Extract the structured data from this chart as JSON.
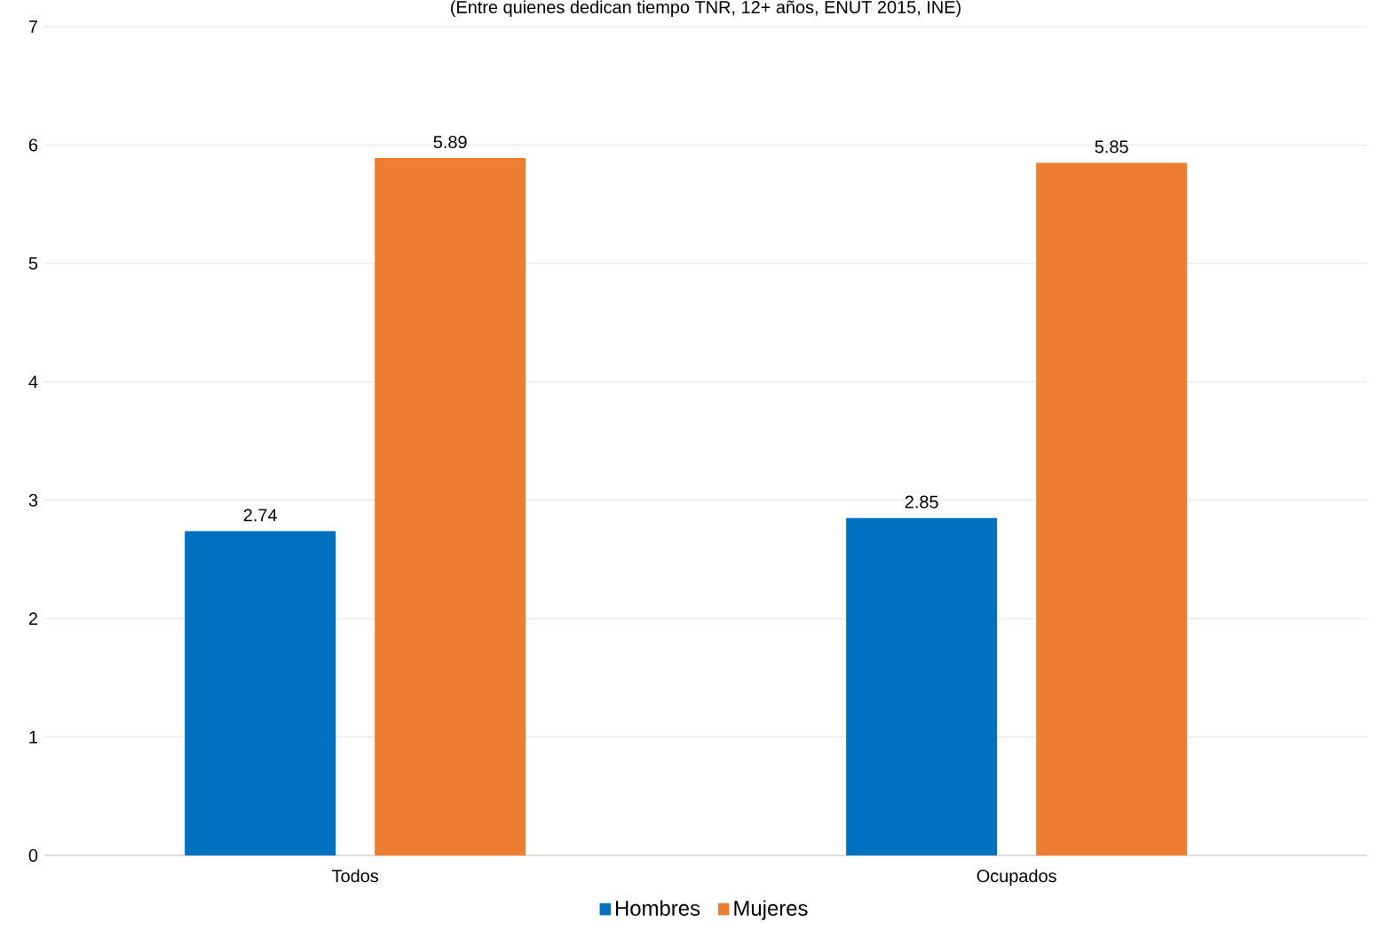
{
  "chart_data": {
    "type": "bar",
    "title": "(Entre quienes dedican tiempo TNR, 12+ años, ENUT 2015, INE)",
    "categories": [
      "Todos",
      "Ocupados"
    ],
    "series": [
      {
        "name": "Hombres",
        "color": "#0070c0",
        "values": [
          2.74,
          2.85
        ]
      },
      {
        "name": "Mujeres",
        "color": "#ed7d31",
        "values": [
          5.89,
          5.85
        ]
      }
    ],
    "ylim": [
      0,
      7
    ],
    "yticks": [
      0,
      1,
      2,
      3,
      4,
      5,
      6,
      7
    ],
    "grid": "y",
    "legend": "bottom",
    "data_labels": true
  }
}
